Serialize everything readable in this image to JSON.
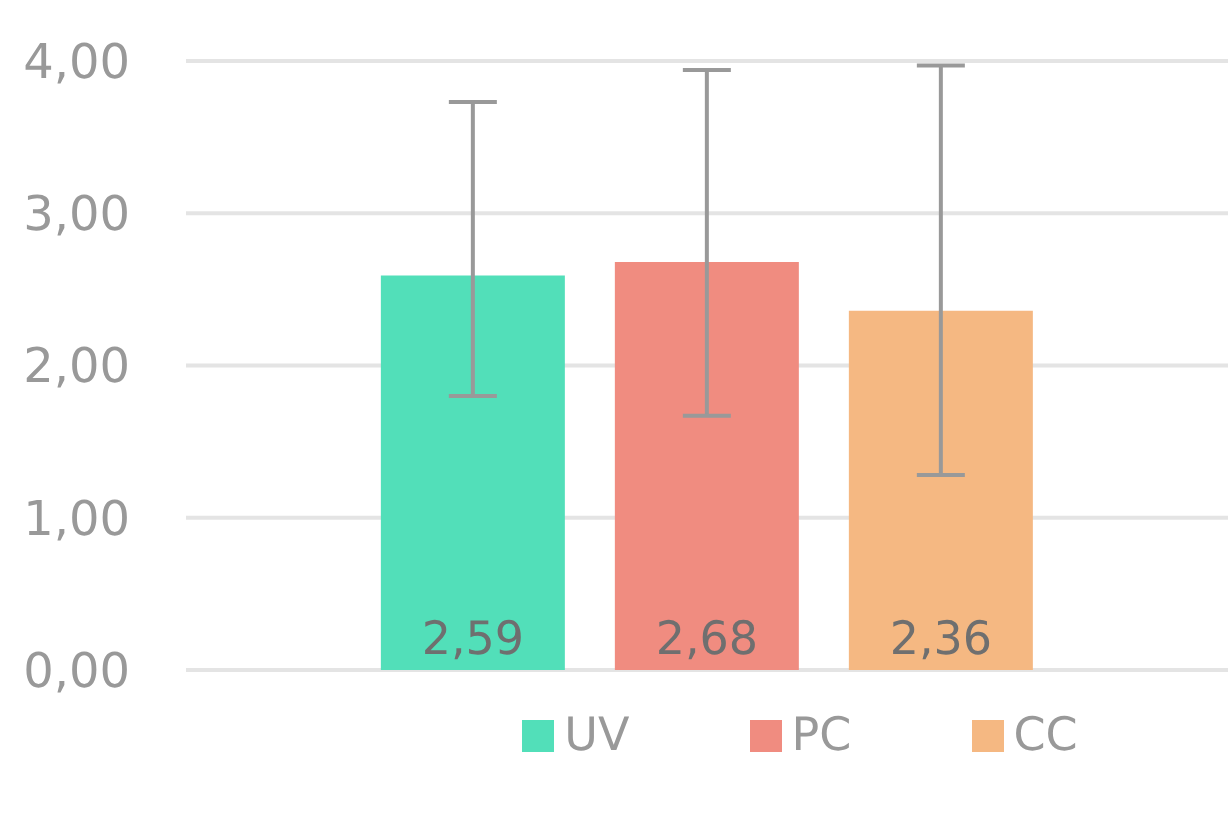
{
  "chart_data": {
    "type": "bar",
    "categories": [
      null
    ],
    "series": [
      {
        "name": "UV",
        "color": "#52dfb9",
        "values": [
          2.59
        ],
        "value_labels": [
          "2,59"
        ],
        "errors": [
          [
            1.8,
            3.73
          ]
        ]
      },
      {
        "name": "PC",
        "color": "#f08c80",
        "values": [
          2.68
        ],
        "value_labels": [
          "2,68"
        ],
        "errors": [
          [
            1.67,
            3.94
          ]
        ]
      },
      {
        "name": "CC",
        "color": "#f5b882",
        "values": [
          2.36
        ],
        "value_labels": [
          "2,36"
        ],
        "errors": [
          [
            1.28,
            3.97
          ]
        ]
      }
    ],
    "ylim": [
      0,
      4.4
    ],
    "yticks": [
      {
        "value": 0,
        "label": "0,00"
      },
      {
        "value": 1,
        "label": "1,00"
      },
      {
        "value": 2,
        "label": "2,00"
      },
      {
        "value": 3,
        "label": "3,00"
      },
      {
        "value": 4,
        "label": "4,00"
      }
    ],
    "grid": "y",
    "legend": "bottom"
  }
}
